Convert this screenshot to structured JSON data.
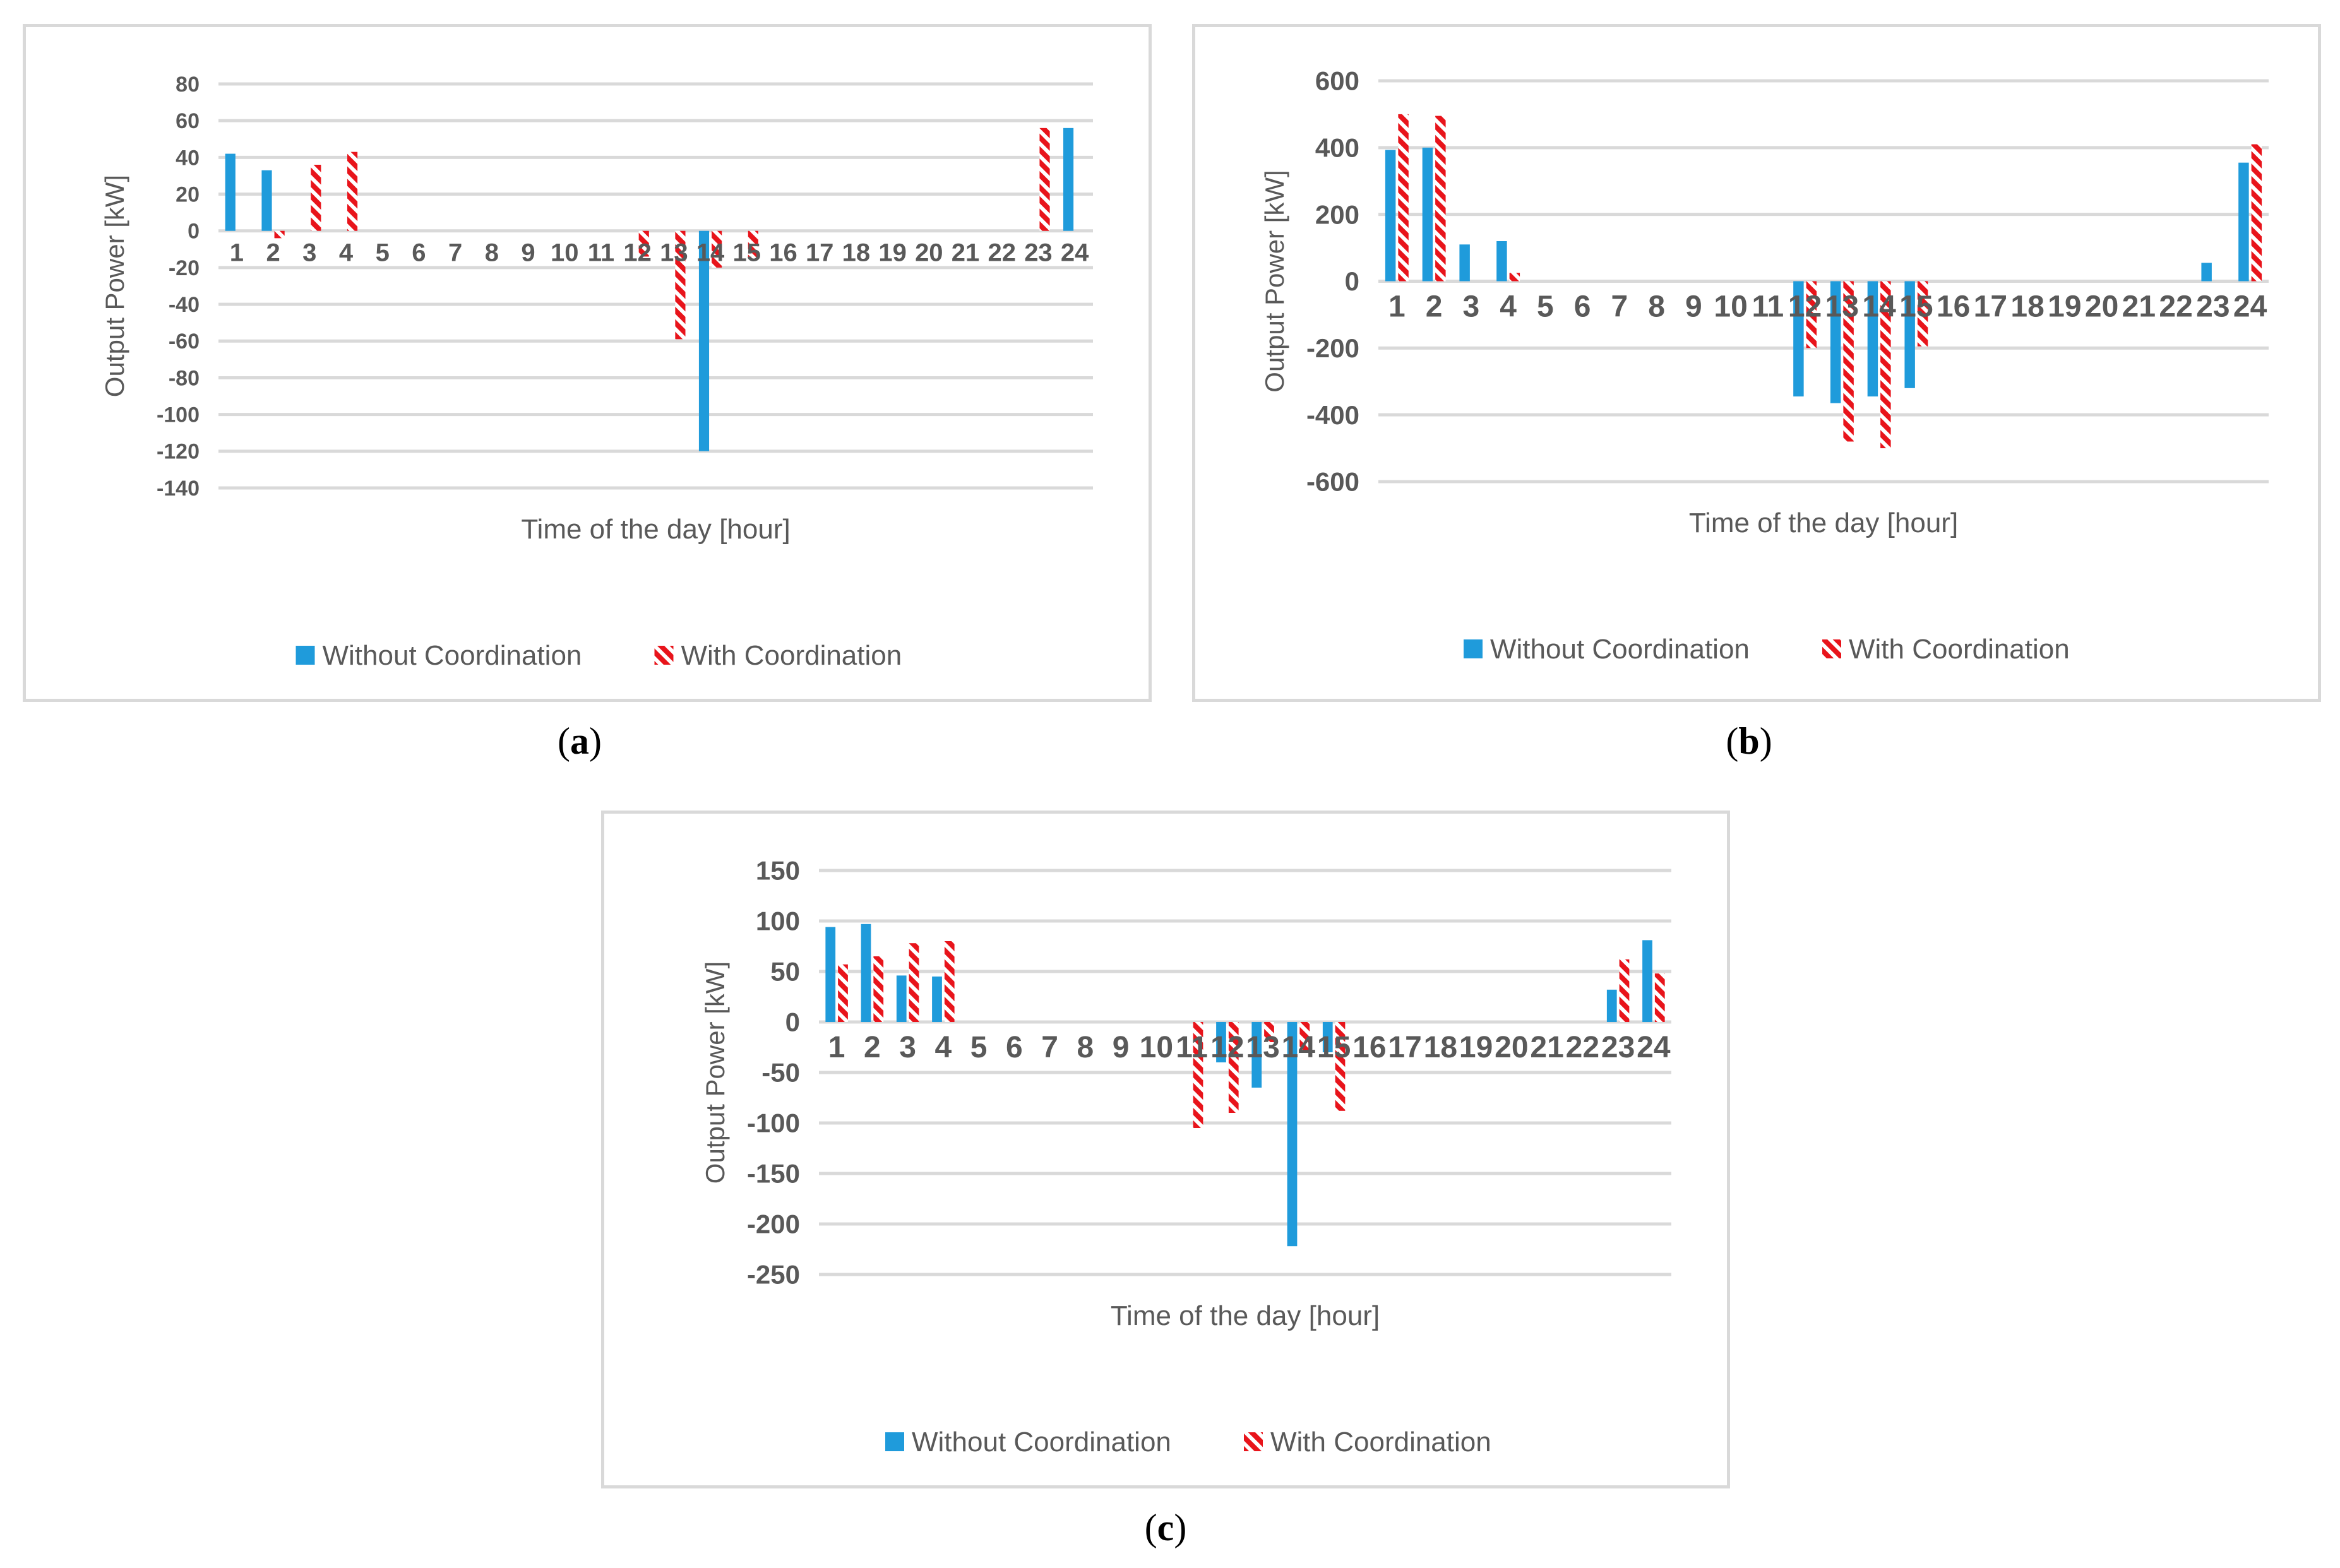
{
  "series_names": [
    "Without Coordination",
    "With Coordination"
  ],
  "colors": {
    "without": "#1F9BDB",
    "with": "#E8141B",
    "grid": "#d9d9d9",
    "text": "#595959"
  },
  "captions": {
    "a": "a",
    "b": "b",
    "c": "c"
  },
  "chart_data": [
    {
      "id": "a",
      "type": "bar",
      "title": "",
      "xlabel": "Time of the day [hour]",
      "ylabel": "Output Power [kW]",
      "categories": [
        "1",
        "2",
        "3",
        "4",
        "5",
        "6",
        "7",
        "8",
        "9",
        "10",
        "11",
        "12",
        "13",
        "14",
        "15",
        "16",
        "17",
        "18",
        "19",
        "20",
        "21",
        "22",
        "23",
        "24"
      ],
      "ylim": [
        -140,
        80
      ],
      "yticks": [
        "80",
        "60",
        "40",
        "20",
        "0",
        "-20",
        "-40",
        "-60",
        "-80",
        "-100",
        "-120",
        "-140"
      ],
      "series": [
        {
          "name": "Without Coordination",
          "values": [
            42,
            33,
            0,
            0,
            0,
            0,
            0,
            0,
            0,
            0,
            0,
            0,
            0,
            -120,
            0,
            0,
            0,
            0,
            0,
            0,
            0,
            0,
            0,
            56
          ]
        },
        {
          "name": "With Coordination",
          "values": [
            0,
            -4,
            36,
            43,
            0,
            0,
            0,
            0,
            0,
            0,
            0,
            -14,
            -59,
            -20,
            -15,
            0,
            0,
            0,
            0,
            0,
            0,
            0,
            56,
            0
          ]
        }
      ],
      "legend": "bottom"
    },
    {
      "id": "b",
      "type": "bar",
      "title": "",
      "xlabel": "Time of the day [hour]",
      "ylabel": "Output Power [kW]",
      "categories": [
        "1",
        "2",
        "3",
        "4",
        "5",
        "6",
        "7",
        "8",
        "9",
        "10",
        "11",
        "12",
        "13",
        "14",
        "15",
        "16",
        "17",
        "18",
        "19",
        "20",
        "21",
        "22",
        "23",
        "24"
      ],
      "ylim": [
        -600,
        600
      ],
      "yticks": [
        "600",
        "400",
        "200",
        "0",
        "-200",
        "-400",
        "-600"
      ],
      "series": [
        {
          "name": "Without Coordination",
          "values": [
            393,
            400,
            110,
            120,
            0,
            0,
            0,
            0,
            0,
            0,
            0,
            -345,
            -365,
            -345,
            -320,
            0,
            0,
            0,
            0,
            0,
            0,
            0,
            55,
            355
          ]
        },
        {
          "name": "With Coordination",
          "values": [
            500,
            495,
            0,
            25,
            0,
            0,
            0,
            0,
            0,
            0,
            0,
            -200,
            -480,
            -500,
            -195,
            0,
            0,
            0,
            0,
            0,
            0,
            0,
            0,
            410
          ]
        }
      ],
      "legend": "bottom"
    },
    {
      "id": "c",
      "type": "bar",
      "title": "",
      "xlabel": "Time of the day [hour]",
      "ylabel": "Output Power [kW]",
      "categories": [
        "1",
        "2",
        "3",
        "4",
        "5",
        "6",
        "7",
        "8",
        "9",
        "10",
        "11",
        "12",
        "13",
        "14",
        "15",
        "16",
        "17",
        "18",
        "19",
        "20",
        "21",
        "22",
        "23",
        "24"
      ],
      "ylim": [
        -250,
        150
      ],
      "yticks": [
        "150",
        "100",
        "50",
        "0",
        "-50",
        "-100",
        "-150",
        "-200",
        "-250"
      ],
      "series": [
        {
          "name": "Without Coordination",
          "values": [
            94,
            97,
            46,
            45,
            0,
            0,
            0,
            0,
            0,
            0,
            0,
            -40,
            -65,
            -222,
            -30,
            0,
            0,
            0,
            0,
            0,
            0,
            0,
            32,
            81
          ]
        },
        {
          "name": "With Coordination",
          "values": [
            57,
            65,
            78,
            80,
            0,
            0,
            0,
            0,
            0,
            0,
            -105,
            -90,
            -20,
            -30,
            -88,
            0,
            0,
            0,
            0,
            0,
            0,
            0,
            62,
            48
          ]
        }
      ],
      "legend": "bottom"
    }
  ]
}
